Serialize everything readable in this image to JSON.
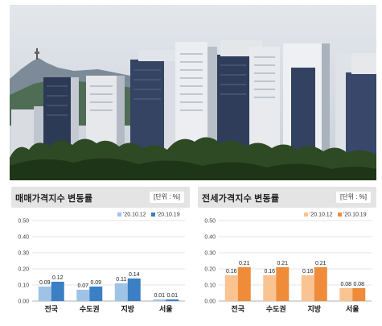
{
  "chart_data": [
    {
      "type": "bar",
      "title": "매매가격지수 변동률",
      "unit": "[단위 : %]",
      "categories": [
        "전국",
        "수도권",
        "지방",
        "서울"
      ],
      "series": [
        {
          "name": "'20.10.12",
          "values": [
            0.09,
            0.07,
            0.11,
            0.01
          ],
          "labels": [
            "0.09",
            "0.07",
            "0.11",
            "0.01"
          ],
          "color": "#9fc3e7"
        },
        {
          "name": "'20.10.19",
          "values": [
            0.12,
            0.09,
            0.14,
            0.01
          ],
          "labels": [
            "0.12",
            "0.09",
            "0.14",
            "0.01"
          ],
          "color": "#3b7fc4"
        }
      ],
      "yticks": [
        "0.00",
        "0.10",
        "0.20",
        "0.30",
        "0.40",
        "0.50"
      ],
      "ylim": [
        0,
        0.5
      ],
      "grid": true,
      "legend": "top-right"
    },
    {
      "type": "bar",
      "title": "전세가격지수 변동률",
      "unit": "[단위 : %]",
      "categories": [
        "전국",
        "수도권",
        "지방",
        "서울"
      ],
      "series": [
        {
          "name": "'20.10.12",
          "values": [
            0.16,
            0.16,
            0.16,
            0.08
          ],
          "labels": [
            "0.16",
            "0.16",
            "0.16",
            "0.08"
          ],
          "color": "#f9c392"
        },
        {
          "name": "'20.10.19",
          "values": [
            0.21,
            0.21,
            0.21,
            0.08
          ],
          "labels": [
            "0.21",
            "0.21",
            "0.21",
            "0.08"
          ],
          "color": "#ef8c3a"
        }
      ],
      "yticks": [
        "0.00",
        "0.10",
        "0.20",
        "0.30",
        "0.40",
        "0.50"
      ],
      "ylim": [
        0,
        0.5
      ],
      "grid": true,
      "legend": "top-right"
    }
  ],
  "photo": {
    "subject": "apartment-buildings-photo"
  }
}
